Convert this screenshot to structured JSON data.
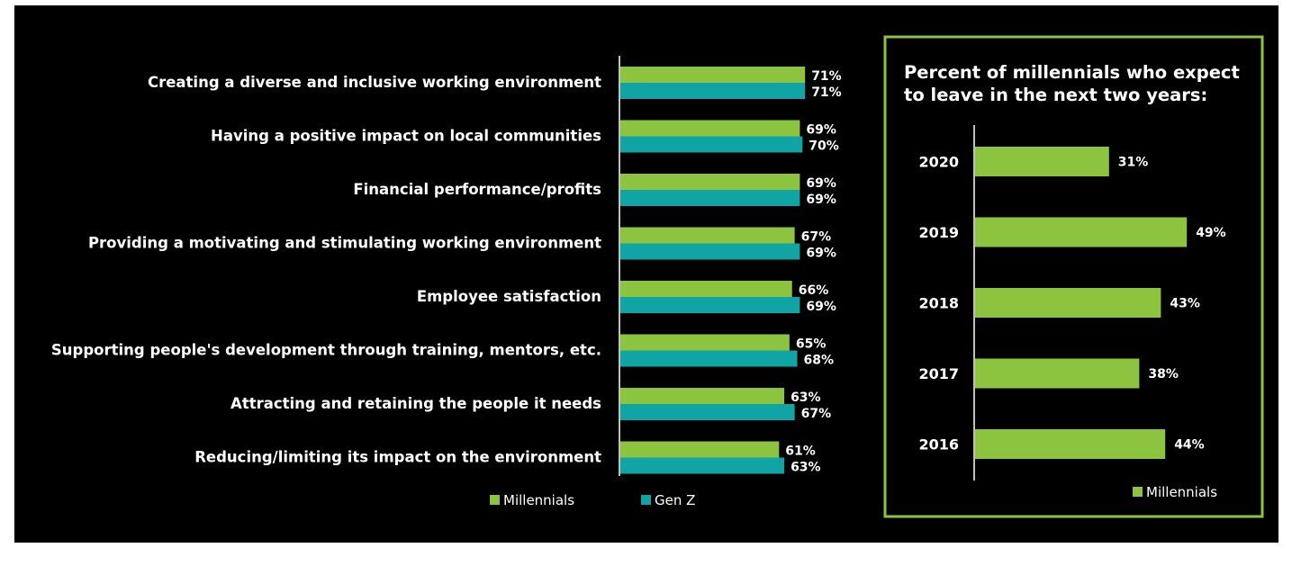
{
  "colors": {
    "millennials": "#8cc43f",
    "genz": "#11a4a4",
    "background": "#000000",
    "panel_border": "#8cc43f",
    "text": "#ffffff"
  },
  "chart_data": [
    {
      "type": "bar",
      "orientation": "horizontal",
      "categories": [
        "Creating a diverse and inclusive working environment",
        "Having a positive impact on local communities",
        "Financial performance/profits",
        "Providing a motivating and stimulating working environment",
        "Employee satisfaction",
        "Supporting people's development through training, mentors, etc.",
        "Attracting and retaining the people it needs",
        "Reducing/limiting its impact on the environment"
      ],
      "series": [
        {
          "name": "Millennials",
          "values": [
            71,
            69,
            69,
            67,
            66,
            65,
            63,
            61
          ],
          "labels": [
            "71%",
            "69%",
            "69%",
            "67%",
            "66%",
            "65%",
            "63%",
            "61%"
          ]
        },
        {
          "name": "Gen Z",
          "values": [
            71,
            70,
            69,
            69,
            69,
            68,
            67,
            63
          ],
          "labels": [
            "71%",
            "70%",
            "69%",
            "69%",
            "69%",
            "68%",
            "67%",
            "63%"
          ]
        }
      ],
      "legend": {
        "placement": "bottom",
        "items": [
          "Millennials",
          "Gen Z"
        ]
      },
      "grid": false
    },
    {
      "type": "bar",
      "orientation": "horizontal",
      "title": [
        "Percent of millennials who expect",
        "to leave in the next two years:"
      ],
      "categories": [
        "2020",
        "2019",
        "2018",
        "2017",
        "2016"
      ],
      "series": [
        {
          "name": "Millennials",
          "values": [
            31,
            49,
            43,
            38,
            44
          ],
          "labels": [
            "31%",
            "49%",
            "43%",
            "38%",
            "44%"
          ]
        }
      ],
      "legend": {
        "placement": "bottom-right",
        "items": [
          "Millennials"
        ]
      },
      "grid": false
    }
  ]
}
